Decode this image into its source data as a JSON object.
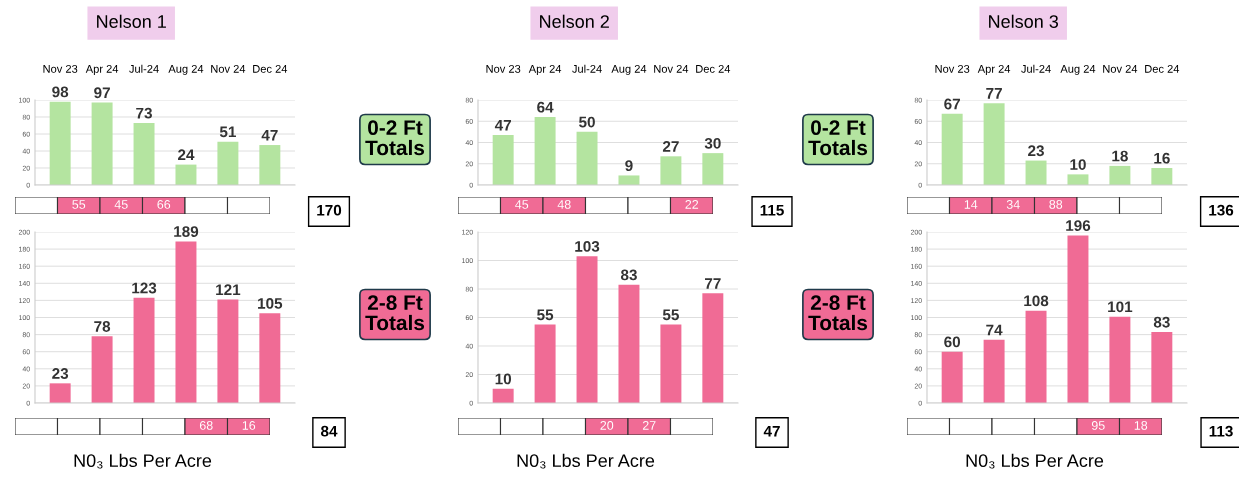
{
  "chart_data": [
    {
      "type": "bar",
      "title": "Nelson 1",
      "categories": [
        "Nov 23",
        "Apr 24",
        "Jul-24",
        "Aug 24",
        "Nov 24",
        "Dec 24"
      ],
      "values": [
        98,
        97,
        73,
        24,
        51,
        47
      ],
      "color": "#b4e4a0",
      "ylim": [
        0,
        100
      ],
      "yticks": [
        0,
        20,
        40,
        60,
        80,
        100
      ],
      "grid": "y",
      "data_labels": true,
      "annotations": [
        "0-2 Ft\nTotals"
      ]
    },
    {
      "type": "other",
      "cell_labels": [
        [
          null,
          "55",
          "45",
          "66",
          null,
          null
        ]
      ],
      "colors": [
        "#ffffff",
        "#f06b95",
        "#f06b95",
        "#f06b95",
        "#ffffff",
        "#ffffff"
      ],
      "annotations": [
        "170"
      ]
    },
    {
      "type": "bar",
      "categories": [
        null,
        null,
        null,
        null,
        null,
        null
      ],
      "values": [
        23,
        78,
        123,
        189,
        121,
        105
      ],
      "color": "#f06b95",
      "ylim": [
        0,
        200
      ],
      "yticks": [
        0,
        20,
        40,
        60,
        80,
        100,
        120,
        140,
        160,
        180,
        200
      ],
      "grid": "y",
      "data_labels": true,
      "tick_labels": "y",
      "annotations": [
        "2-8 Ft\nTotals"
      ]
    },
    {
      "type": "other",
      "cell_labels": [
        [
          null,
          null,
          null,
          null,
          "68",
          "16"
        ]
      ],
      "colors": [
        "#ffffff",
        "#ffffff",
        "#ffffff",
        "#ffffff",
        "#f06b95",
        "#f06b95"
      ],
      "annotations": [
        "84"
      ],
      "xlabel": "N0₃ Lbs Per Acre"
    },
    {
      "type": "bar",
      "title": "Nelson 2",
      "categories": [
        "Nov 23",
        "Apr 24",
        "Jul-24",
        "Aug 24",
        "Nov 24",
        "Dec 24"
      ],
      "values": [
        47,
        64,
        50,
        9,
        27,
        30
      ],
      "color": "#b4e4a0",
      "ylim": [
        0,
        80
      ],
      "yticks": [
        0,
        20,
        40,
        60,
        80
      ],
      "grid": "y",
      "data_labels": true,
      "annotations": [
        "0-2 Ft\nTotals"
      ]
    },
    {
      "type": "other",
      "cell_labels": [
        [
          null,
          "45",
          "48",
          null,
          null,
          "22"
        ]
      ],
      "colors": [
        "#ffffff",
        "#f06b95",
        "#f06b95",
        "#ffffff",
        "#ffffff",
        "#f06b95"
      ],
      "annotations": [
        "115"
      ]
    },
    {
      "type": "bar",
      "categories": [
        null,
        null,
        null,
        null,
        null,
        null
      ],
      "values": [
        10,
        55,
        103,
        83,
        55,
        77
      ],
      "color": "#f06b95",
      "ylim": [
        0,
        120
      ],
      "yticks": [
        0,
        20,
        40,
        60,
        80,
        100,
        120
      ],
      "grid": "y",
      "data_labels": true,
      "tick_labels": "y",
      "annotations": [
        "2-8 Ft\nTotals"
      ]
    },
    {
      "type": "other",
      "cell_labels": [
        [
          null,
          null,
          null,
          "20",
          "27",
          null
        ]
      ],
      "colors": [
        "#ffffff",
        "#ffffff",
        "#ffffff",
        "#f06b95",
        "#f06b95",
        "#ffffff"
      ],
      "annotations": [
        "47"
      ],
      "xlabel": "N0₃ Lbs Per Acre"
    },
    {
      "type": "bar",
      "title": "Nelson 3",
      "categories": [
        "Nov 23",
        "Apr 24",
        "Jul-24",
        "Aug 24",
        "Nov 24",
        "Dec 24"
      ],
      "values": [
        67,
        77,
        23,
        10,
        18,
        16
      ],
      "color": "#b4e4a0",
      "ylim": [
        0,
        80
      ],
      "yticks": [
        0,
        20,
        40,
        60,
        80
      ],
      "grid": "y",
      "data_labels": true
    },
    {
      "type": "other",
      "cell_labels": [
        [
          null,
          "14",
          "34",
          "88",
          null,
          null
        ]
      ],
      "colors": [
        "#ffffff",
        "#f06b95",
        "#f06b95",
        "#f06b95",
        "#ffffff",
        "#ffffff"
      ],
      "annotations": [
        "136"
      ]
    },
    {
      "type": "bar",
      "categories": [
        null,
        null,
        null,
        null,
        null,
        null
      ],
      "values": [
        60,
        74,
        108,
        196,
        101,
        83
      ],
      "color": "#f06b95",
      "ylim": [
        0,
        200
      ],
      "yticks": [
        0,
        20,
        40,
        60,
        80,
        100,
        120,
        140,
        160,
        180,
        200
      ],
      "grid": "y",
      "data_labels": true,
      "tick_labels": "y"
    },
    {
      "type": "other",
      "cell_labels": [
        [
          null,
          null,
          null,
          null,
          "95",
          "18"
        ]
      ],
      "colors": [
        "#ffffff",
        "#ffffff",
        "#ffffff",
        "#ffffff",
        "#f06b95",
        "#f06b95"
      ],
      "annotations": [
        "113"
      ],
      "xlabel": "N0₃ Lbs Per Acre"
    }
  ]
}
